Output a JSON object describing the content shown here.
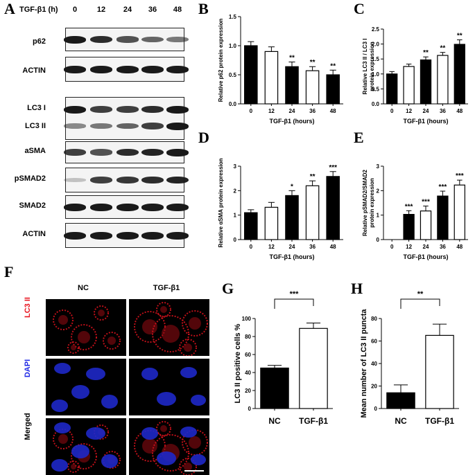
{
  "panel_letters": [
    "A",
    "B",
    "C",
    "D",
    "E",
    "F",
    "G",
    "H"
  ],
  "blot": {
    "time_header": "TGF-β1 (h)",
    "timepoints": [
      "0",
      "12",
      "24",
      "36",
      "48"
    ],
    "rows": [
      {
        "label": "p62",
        "intensity": [
          1.0,
          0.9,
          0.7,
          0.6,
          0.5
        ]
      },
      {
        "label": "ACTIN",
        "intensity": [
          1.0,
          1.0,
          1.0,
          1.0,
          1.0
        ]
      },
      {
        "label": "LC3 I",
        "intensity": [
          1.0,
          0.8,
          0.8,
          0.9,
          1.0
        ]
      },
      {
        "label": "LC3 II",
        "intensity": [
          0.4,
          0.5,
          0.6,
          0.8,
          1.0
        ]
      },
      {
        "label": "aSMA",
        "intensity": [
          0.8,
          0.7,
          0.9,
          0.95,
          1.0
        ]
      },
      {
        "label": "pSMAD2",
        "intensity": [
          0.1,
          0.8,
          0.85,
          0.9,
          0.95
        ]
      },
      {
        "label": "SMAD2",
        "intensity": [
          1.0,
          1.0,
          1.0,
          1.0,
          1.0
        ]
      },
      {
        "label": "ACTIN",
        "intensity": [
          1.0,
          1.0,
          1.0,
          1.0,
          1.0
        ]
      }
    ]
  },
  "if_panel": {
    "columns": [
      "NC",
      "TGF-β1"
    ],
    "rows": [
      {
        "label": "LC3 II",
        "color": "#e8141e"
      },
      {
        "label": "DAPI",
        "color": "#1e28e6"
      },
      {
        "label": "Merged",
        "color": "#000000"
      }
    ]
  },
  "chart_data": [
    {
      "panel": "B",
      "type": "bar",
      "categories": [
        "0",
        "12",
        "24",
        "36",
        "48"
      ],
      "values": [
        1.0,
        0.9,
        0.64,
        0.57,
        0.5
      ],
      "errors": [
        0.07,
        0.08,
        0.08,
        0.07,
        0.08
      ],
      "fills": [
        "black",
        "white",
        "black",
        "white",
        "black"
      ],
      "significance": [
        "",
        "",
        "**",
        "**",
        "**"
      ],
      "xlabel": "TGF-β1 (hours)",
      "ylabel": [
        "Relative p62 protein expression"
      ],
      "ylim": [
        0,
        1.5
      ],
      "yticks": [
        0.0,
        0.5,
        1.0,
        1.5
      ],
      "ytick_labels": [
        "0.0",
        "0.5",
        "1.0",
        "1.5"
      ]
    },
    {
      "panel": "C",
      "type": "bar",
      "categories": [
        "0",
        "12",
        "24",
        "36",
        "48"
      ],
      "values": [
        1.0,
        1.25,
        1.47,
        1.62,
        1.99
      ],
      "errors": [
        0.08,
        0.08,
        0.1,
        0.1,
        0.15
      ],
      "fills": [
        "black",
        "white",
        "black",
        "white",
        "black"
      ],
      "significance": [
        "",
        "",
        "**",
        "**",
        "**"
      ],
      "xlabel": "TGF-β1 (hours)",
      "ylabel": [
        "Relative LC3 II / LC3 I",
        "protein expression"
      ],
      "ylim": [
        0,
        2.5
      ],
      "yticks": [
        0.0,
        0.5,
        1.0,
        1.5,
        2.0,
        2.5
      ],
      "ytick_labels": [
        "0.0",
        "0.5",
        "1.0",
        "1.5",
        "2.0",
        "2.5"
      ]
    },
    {
      "panel": "D",
      "type": "bar",
      "categories": [
        "0",
        "12",
        "24",
        "36",
        "48"
      ],
      "values": [
        1.1,
        1.32,
        1.8,
        2.2,
        2.58
      ],
      "errors": [
        0.12,
        0.2,
        0.2,
        0.2,
        0.2
      ],
      "fills": [
        "black",
        "white",
        "black",
        "white",
        "black"
      ],
      "significance": [
        "",
        "",
        "*",
        "**",
        "***"
      ],
      "xlabel": "TGF-β1 (hours)",
      "ylabel": [
        "Relative αSMA protein expression"
      ],
      "ylim": [
        0,
        3
      ],
      "yticks": [
        0,
        1,
        2,
        3
      ],
      "ytick_labels": [
        "0",
        "1",
        "2",
        "3"
      ]
    },
    {
      "panel": "E",
      "type": "bar",
      "categories": [
        "0",
        "12",
        "24",
        "36",
        "48"
      ],
      "values": [
        0,
        1.03,
        1.17,
        1.78,
        2.23
      ],
      "errors": [
        0,
        0.15,
        0.2,
        0.2,
        0.2
      ],
      "fills": [
        "black",
        "black",
        "white",
        "black",
        "white"
      ],
      "significance": [
        "",
        "***",
        "***",
        "***",
        "***"
      ],
      "xlabel": "TGF-β1 (hours)",
      "ylabel": [
        "Relative pSMAD2/SMAD2",
        "protein expression"
      ],
      "ylim": [
        0,
        3
      ],
      "yticks": [
        0,
        1,
        2,
        3
      ],
      "ytick_labels": [
        "0",
        "1",
        "2",
        "3"
      ]
    },
    {
      "panel": "G",
      "type": "bar",
      "categories": [
        "NC",
        "TGF-β1"
      ],
      "values": [
        45,
        89
      ],
      "errors": [
        3,
        6
      ],
      "fills": [
        "black",
        "white"
      ],
      "significance_bracket": "***",
      "xlabel": "",
      "ylabel": [
        "LC3 II positive cells %"
      ],
      "ylim": [
        0,
        100
      ],
      "yticks": [
        0,
        20,
        40,
        60,
        80,
        100
      ],
      "ytick_labels": [
        "0",
        "20",
        "40",
        "60",
        "80",
        "100"
      ]
    },
    {
      "panel": "H",
      "type": "bar",
      "categories": [
        "NC",
        "TGF-β1"
      ],
      "values": [
        14,
        65
      ],
      "errors": [
        7,
        10
      ],
      "fills": [
        "black",
        "white"
      ],
      "significance_bracket": "**",
      "xlabel": "",
      "ylabel": [
        "Mean number of LC3 II puncta"
      ],
      "ylim": [
        0,
        80
      ],
      "yticks": [
        0,
        20,
        40,
        60,
        80
      ],
      "ytick_labels": [
        "0",
        "20",
        "40",
        "60",
        "80"
      ]
    }
  ]
}
